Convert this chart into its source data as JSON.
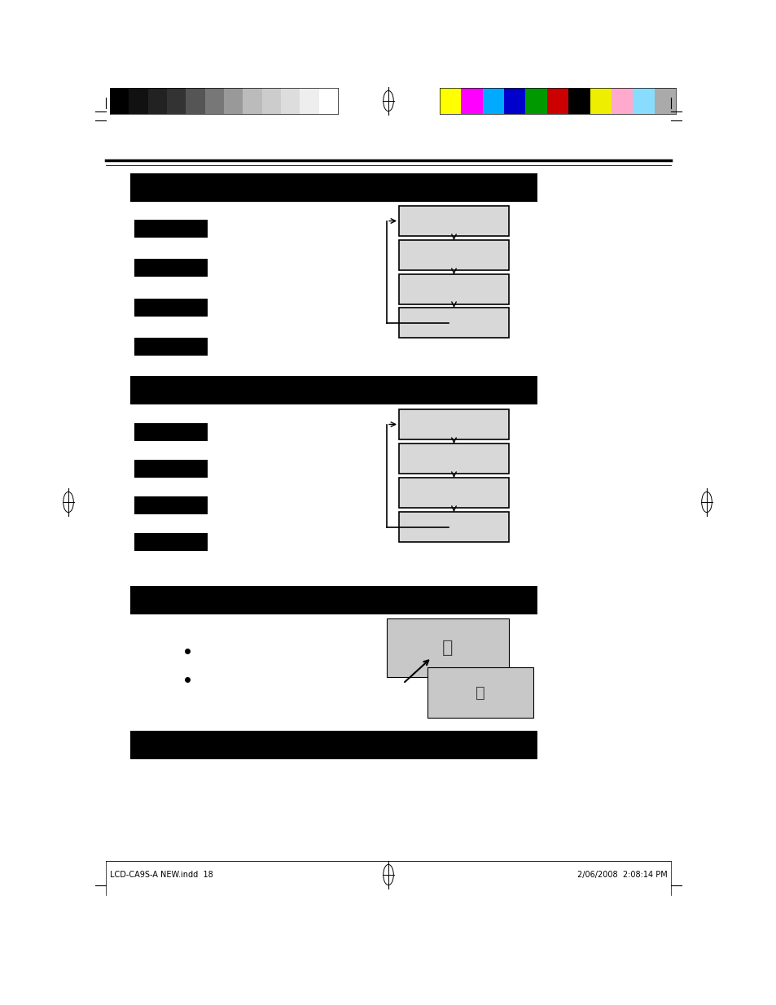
{
  "bg_color": "#ffffff",
  "page_width": 9.54,
  "page_height": 12.35,
  "top_color_bars_gray": [
    "#000000",
    "#111111",
    "#222222",
    "#333333",
    "#555555",
    "#777777",
    "#999999",
    "#bbbbbb",
    "#cccccc",
    "#dddddd",
    "#eeeeee",
    "#ffffff"
  ],
  "top_color_bars_color": [
    "#ffff00",
    "#ff00ff",
    "#00aaff",
    "#0000cc",
    "#009900",
    "#cc0000",
    "#000000",
    "#eeee00",
    "#ffaacc",
    "#88ddff",
    "#aaaaaa"
  ],
  "bottom_text_left": "LCD-CA9S-A NEW.indd  18",
  "bottom_text_right": "2/06/2008  2:08:14 PM"
}
